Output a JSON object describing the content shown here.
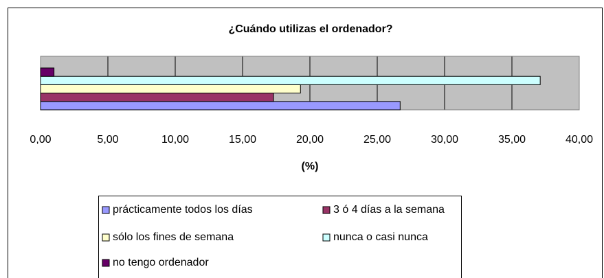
{
  "chart_data": {
    "type": "barh",
    "title": "¿Cuándo utilizas el ordenador?",
    "x_label": "(%)",
    "categories": [
      null
    ],
    "series": [
      {
        "name": "prácticamente todos los días",
        "color": "#9999ff",
        "values": [
          26.7
        ]
      },
      {
        "name": "3 ó 4 días a la semana",
        "color": "#993366",
        "values": [
          17.3
        ]
      },
      {
        "name": "sólo los fines de semana",
        "color": "#ffffcc",
        "values": [
          19.3
        ]
      },
      {
        "name": "nunca o casi nunca",
        "color": "#ccffff",
        "values": [
          37.1
        ]
      },
      {
        "name": "no tengo ordenador",
        "color": "#660066",
        "values": [
          1.0
        ]
      }
    ],
    "xlim": [
      0,
      40
    ],
    "xticks": [
      {
        "value": 0,
        "label": "0,00"
      },
      {
        "value": 5,
        "label": "5,00"
      },
      {
        "value": 10,
        "label": "10,00"
      },
      {
        "value": 15,
        "label": "15,00"
      },
      {
        "value": 20,
        "label": "20,00"
      },
      {
        "value": 25,
        "label": "25,00"
      },
      {
        "value": 30,
        "label": "30,00"
      },
      {
        "value": 35,
        "label": "35,00"
      },
      {
        "value": 40,
        "label": "40,00"
      }
    ],
    "grid": true,
    "legend": "bottom"
  }
}
